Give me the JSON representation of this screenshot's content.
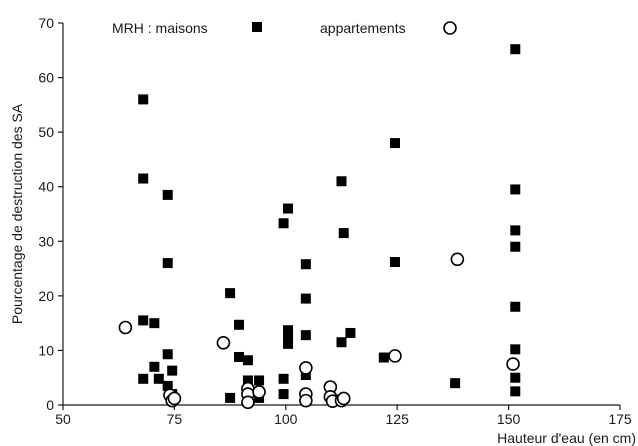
{
  "chart_data": {
    "type": "scatter",
    "title": "",
    "xlabel": "Hauteur d'eau (en cm)",
    "ylabel": "Pourcentage de destruction des SA",
    "xlim": [
      50,
      175
    ],
    "ylim": [
      0,
      70
    ],
    "xticks": [
      50,
      75,
      100,
      125,
      150,
      175
    ],
    "yticks": [
      0,
      10,
      20,
      30,
      40,
      50,
      60,
      70
    ],
    "grid": false,
    "legend_position": "top",
    "colors": {
      "axis": "#1a1a1a",
      "marker": "#000000"
    },
    "series": [
      {
        "name": "MRH : maisons",
        "marker": "filled-square",
        "points": [
          [
            68,
            56
          ],
          [
            68,
            41.5
          ],
          [
            68,
            15.5
          ],
          [
            68,
            4.8
          ],
          [
            70.5,
            15
          ],
          [
            70.5,
            7
          ],
          [
            71.5,
            4.8
          ],
          [
            73.5,
            38.5
          ],
          [
            73.5,
            26
          ],
          [
            73.5,
            9.3
          ],
          [
            73.5,
            3.5
          ],
          [
            74.5,
            6.3
          ],
          [
            74.5,
            2
          ],
          [
            87.5,
            20.5
          ],
          [
            87.5,
            1.3
          ],
          [
            89.5,
            14.7
          ],
          [
            89.5,
            8.8
          ],
          [
            91.5,
            8.2
          ],
          [
            91.5,
            4.5
          ],
          [
            94,
            4.5
          ],
          [
            94,
            1.3
          ],
          [
            99.5,
            33.3
          ],
          [
            99.5,
            4.8
          ],
          [
            99.5,
            2
          ],
          [
            100.5,
            36
          ],
          [
            100.5,
            13.7
          ],
          [
            100.5,
            11.2
          ],
          [
            100.5,
            12.5
          ],
          [
            104.5,
            25.8
          ],
          [
            104.5,
            19.5
          ],
          [
            104.5,
            12.8
          ],
          [
            104.5,
            5.5
          ],
          [
            112.5,
            41
          ],
          [
            112.5,
            11.5
          ],
          [
            112.5,
            1
          ],
          [
            113,
            31.5
          ],
          [
            114.5,
            13.2
          ],
          [
            122,
            8.7
          ],
          [
            124.5,
            48
          ],
          [
            124.5,
            26.2
          ],
          [
            138,
            4
          ],
          [
            151.5,
            65.2
          ],
          [
            151.5,
            39.5
          ],
          [
            151.5,
            32
          ],
          [
            151.5,
            29
          ],
          [
            151.5,
            18
          ],
          [
            151.5,
            10.2
          ],
          [
            151.5,
            5
          ],
          [
            151.5,
            2.5
          ]
        ]
      },
      {
        "name": "appartements",
        "marker": "open-circle",
        "points": [
          [
            64,
            14.2
          ],
          [
            86,
            11.4
          ],
          [
            74,
            1.8
          ],
          [
            74.5,
            0.8
          ],
          [
            75,
            1.2
          ],
          [
            91.5,
            3
          ],
          [
            91.5,
            2
          ],
          [
            91.5,
            0.5
          ],
          [
            94,
            2.4
          ],
          [
            104.5,
            6.8
          ],
          [
            104.5,
            2
          ],
          [
            104.5,
            0.8
          ],
          [
            110,
            3.3
          ],
          [
            110,
            1.5
          ],
          [
            110.5,
            0.7
          ],
          [
            112.5,
            0.8
          ],
          [
            113,
            1.2
          ],
          [
            124.5,
            9
          ],
          [
            138.5,
            26.7
          ],
          [
            151,
            7.5
          ]
        ]
      }
    ]
  }
}
